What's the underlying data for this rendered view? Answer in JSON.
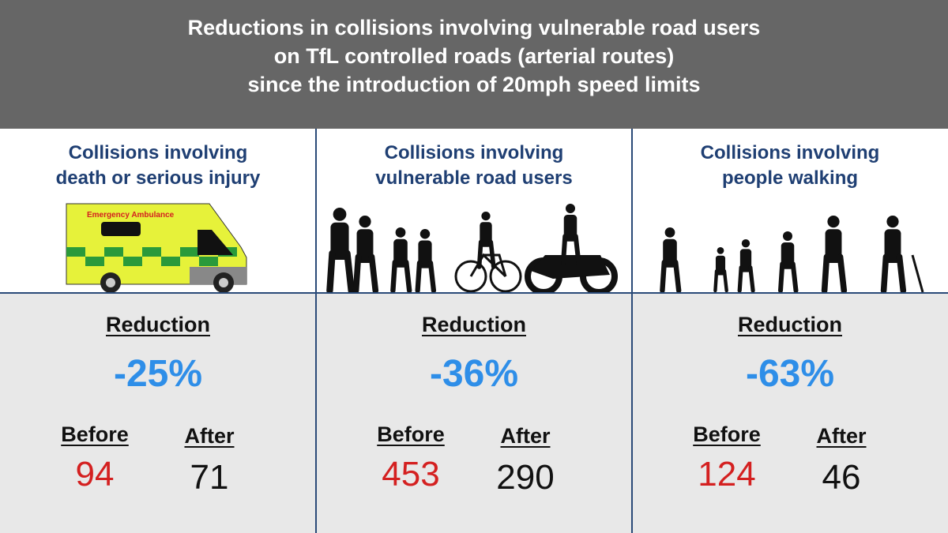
{
  "header": {
    "title_lines": [
      "Reductions in collisions involving vulnerable road users",
      "on TfL controlled roads (arterial routes)",
      "since the introduction of 20mph speed limits"
    ]
  },
  "panels": [
    {
      "heading_lines": [
        "Collisions involving",
        "death or serious injury"
      ],
      "illustration_text": "Emergency Ambulance",
      "reduction_label": "Reduction",
      "reduction": "-25%",
      "before_label": "Before",
      "before": 94,
      "after_label": "After",
      "after": 71
    },
    {
      "heading_lines": [
        "Collisions involving",
        "vulnerable road users"
      ],
      "reduction_label": "Reduction",
      "reduction": "-36%",
      "before_label": "Before",
      "before": 453,
      "after_label": "After",
      "after": 290
    },
    {
      "heading_lines": [
        "Collisions involving",
        "people walking"
      ],
      "reduction_label": "Reduction",
      "reduction": "-63%",
      "before_label": "Before",
      "before": 124,
      "after_label": "After",
      "after": 46
    }
  ]
}
